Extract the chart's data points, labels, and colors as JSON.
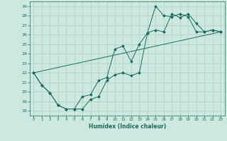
{
  "xlabel": "Humidex (Indice chaleur)",
  "xlim": [
    -0.5,
    23.5
  ],
  "ylim": [
    17.5,
    29.5
  ],
  "xticks": [
    0,
    1,
    2,
    3,
    4,
    5,
    6,
    7,
    8,
    9,
    10,
    11,
    12,
    13,
    14,
    15,
    16,
    17,
    18,
    19,
    20,
    21,
    22,
    23
  ],
  "yticks": [
    18,
    19,
    20,
    21,
    22,
    23,
    24,
    25,
    26,
    27,
    28,
    29
  ],
  "bg_color": "#cce8e0",
  "line_color": "#1a6b5a",
  "grid_color": "#aacfc8",
  "font_color": "#1a6b5a",
  "line1_x": [
    0,
    1,
    2,
    3,
    4,
    5,
    6,
    7,
    8,
    9,
    10,
    11,
    12,
    13,
    14,
    15,
    16,
    17,
    18,
    19,
    20,
    21,
    22,
    23
  ],
  "line1_y": [
    22,
    20.7,
    19.9,
    18.6,
    18.2,
    18.2,
    19.5,
    19.7,
    21.2,
    21.5,
    24.5,
    24.8,
    23.2,
    25.0,
    26.2,
    29.0,
    28.0,
    27.9,
    28.2,
    27.9,
    26.3,
    26.3,
    26.5,
    26.3
  ],
  "line2_x": [
    0,
    1,
    2,
    3,
    4,
    5,
    6,
    7,
    8,
    9,
    10,
    11,
    12,
    13,
    14,
    15,
    16,
    17,
    18,
    19,
    20,
    21,
    22,
    23
  ],
  "line2_y": [
    22,
    20.7,
    19.9,
    18.6,
    18.2,
    18.2,
    18.2,
    19.2,
    19.5,
    21.2,
    21.8,
    22.0,
    21.7,
    22.0,
    26.2,
    26.5,
    26.3,
    28.2,
    27.8,
    28.2,
    27.2,
    26.3,
    26.5,
    26.3
  ],
  "line3_x": [
    0,
    23
  ],
  "line3_y": [
    22,
    26.3
  ]
}
